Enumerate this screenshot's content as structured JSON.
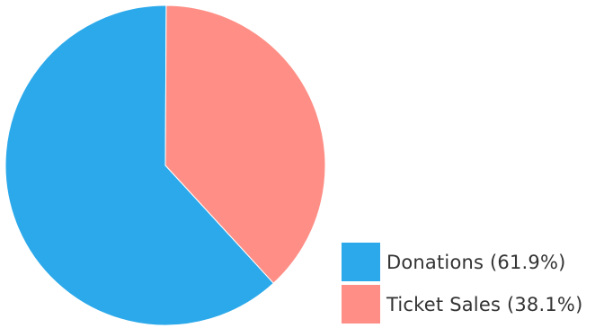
{
  "chart_data": {
    "type": "pie",
    "title": "",
    "slices": [
      {
        "label": "Donations (61.9%)",
        "value": 61.9,
        "color": "#2ca9ea"
      },
      {
        "label": "Ticket Sales (38.1%)",
        "value": 38.1,
        "color": "#ff8f86"
      }
    ],
    "legend_position": "bottom-right"
  }
}
